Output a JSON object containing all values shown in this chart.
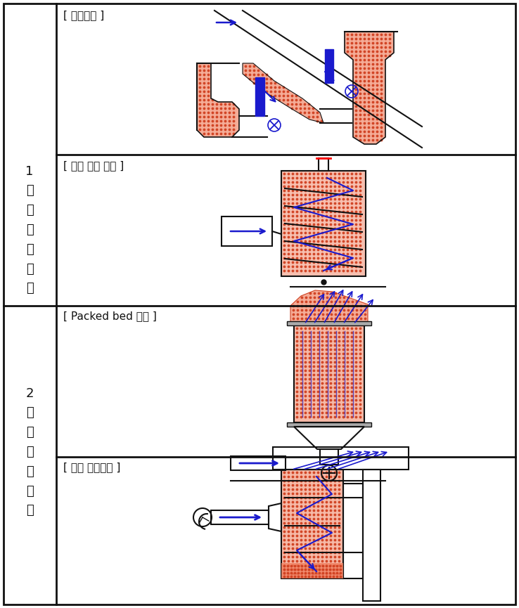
{
  "bg_color": "#ffffff",
  "line_color": "#111111",
  "fill_color": "#f08060",
  "arrow_color": "#1a1acd",
  "dot_color": "#d04020",
  "label1": "1\n차\n열\n회\n수\n장\n치",
  "label2": "2\n차\n열\n회\n수\n장\n치",
  "title1": "[ 첸널방식 ]",
  "title2": "[ 하향 베플 방식 ]",
  "title3": "[ Packed bed 방식 ]",
  "title4": "[ 상향 베플방식 ]"
}
